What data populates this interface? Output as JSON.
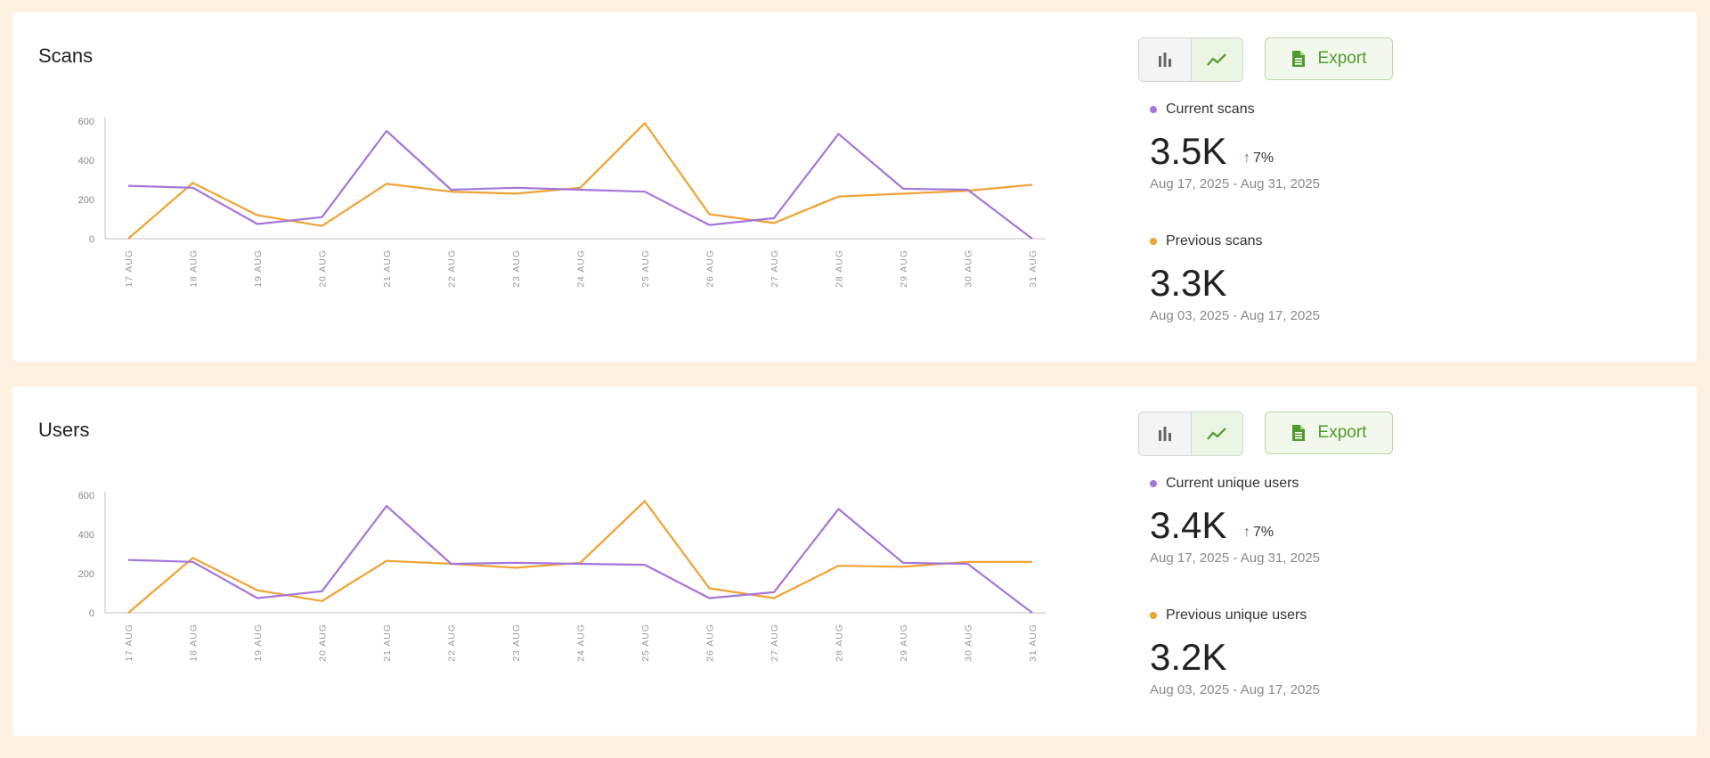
{
  "colors": {
    "current": "#a476db",
    "previous": "#f0a232",
    "accent": "#4f9a2c"
  },
  "cards": [
    {
      "title": "Scans",
      "toggle": {
        "bar_icon": "bar-chart-icon",
        "line_icon": "line-chart-icon",
        "selected": "line"
      },
      "export_label": "Export",
      "current": {
        "label": "Current scans",
        "value": "3.5K",
        "delta": "7%",
        "date_range": "Aug 17, 2025 - Aug 31, 2025"
      },
      "previous": {
        "label": "Previous scans",
        "value": "3.3K",
        "date_range": "Aug 03, 2025 - Aug 17, 2025"
      }
    },
    {
      "title": "Users",
      "toggle": {
        "bar_icon": "bar-chart-icon",
        "line_icon": "line-chart-icon",
        "selected": "line"
      },
      "export_label": "Export",
      "current": {
        "label": "Current unique users",
        "value": "3.4K",
        "delta": "7%",
        "date_range": "Aug 17, 2025 - Aug 31, 2025"
      },
      "previous": {
        "label": "Previous unique users",
        "value": "3.2K",
        "date_range": "Aug 03, 2025 - Aug 17, 2025"
      }
    }
  ],
  "chart_data": [
    {
      "type": "line",
      "title": "Scans",
      "categories": [
        "17 AUG",
        "18 AUG",
        "19 AUG",
        "20 AUG",
        "21 AUG",
        "22 AUG",
        "23 AUG",
        "24 AUG",
        "25 AUG",
        "26 AUG",
        "27 AUG",
        "28 AUG",
        "29 AUG",
        "30 AUG",
        "31 AUG"
      ],
      "series": [
        {
          "name": "Current scans",
          "color": "#a476db",
          "values": [
            270,
            260,
            75,
            110,
            550,
            250,
            260,
            250,
            240,
            70,
            105,
            535,
            255,
            250,
            0
          ]
        },
        {
          "name": "Previous scans",
          "color": "#f0a232",
          "values": [
            0,
            285,
            120,
            65,
            280,
            240,
            230,
            260,
            590,
            125,
            80,
            215,
            230,
            245,
            275
          ]
        }
      ],
      "yticks": [
        0,
        200,
        400,
        600
      ],
      "ylim": [
        0,
        600
      ],
      "grid": false,
      "legend": "right"
    },
    {
      "type": "line",
      "title": "Users",
      "categories": [
        "17 AUG",
        "18 AUG",
        "19 AUG",
        "20 AUG",
        "21 AUG",
        "22 AUG",
        "23 AUG",
        "24 AUG",
        "25 AUG",
        "26 AUG",
        "27 AUG",
        "28 AUG",
        "29 AUG",
        "30 AUG",
        "31 AUG"
      ],
      "series": [
        {
          "name": "Current unique users",
          "color": "#a476db",
          "values": [
            270,
            260,
            75,
            110,
            545,
            250,
            255,
            250,
            245,
            75,
            105,
            530,
            255,
            250,
            0
          ]
        },
        {
          "name": "Previous unique users",
          "color": "#f0a232",
          "values": [
            0,
            280,
            115,
            60,
            265,
            250,
            230,
            255,
            570,
            125,
            75,
            240,
            235,
            260,
            260
          ]
        }
      ],
      "yticks": [
        0,
        200,
        400,
        600
      ],
      "ylim": [
        0,
        600
      ],
      "grid": false,
      "legend": "right"
    }
  ]
}
